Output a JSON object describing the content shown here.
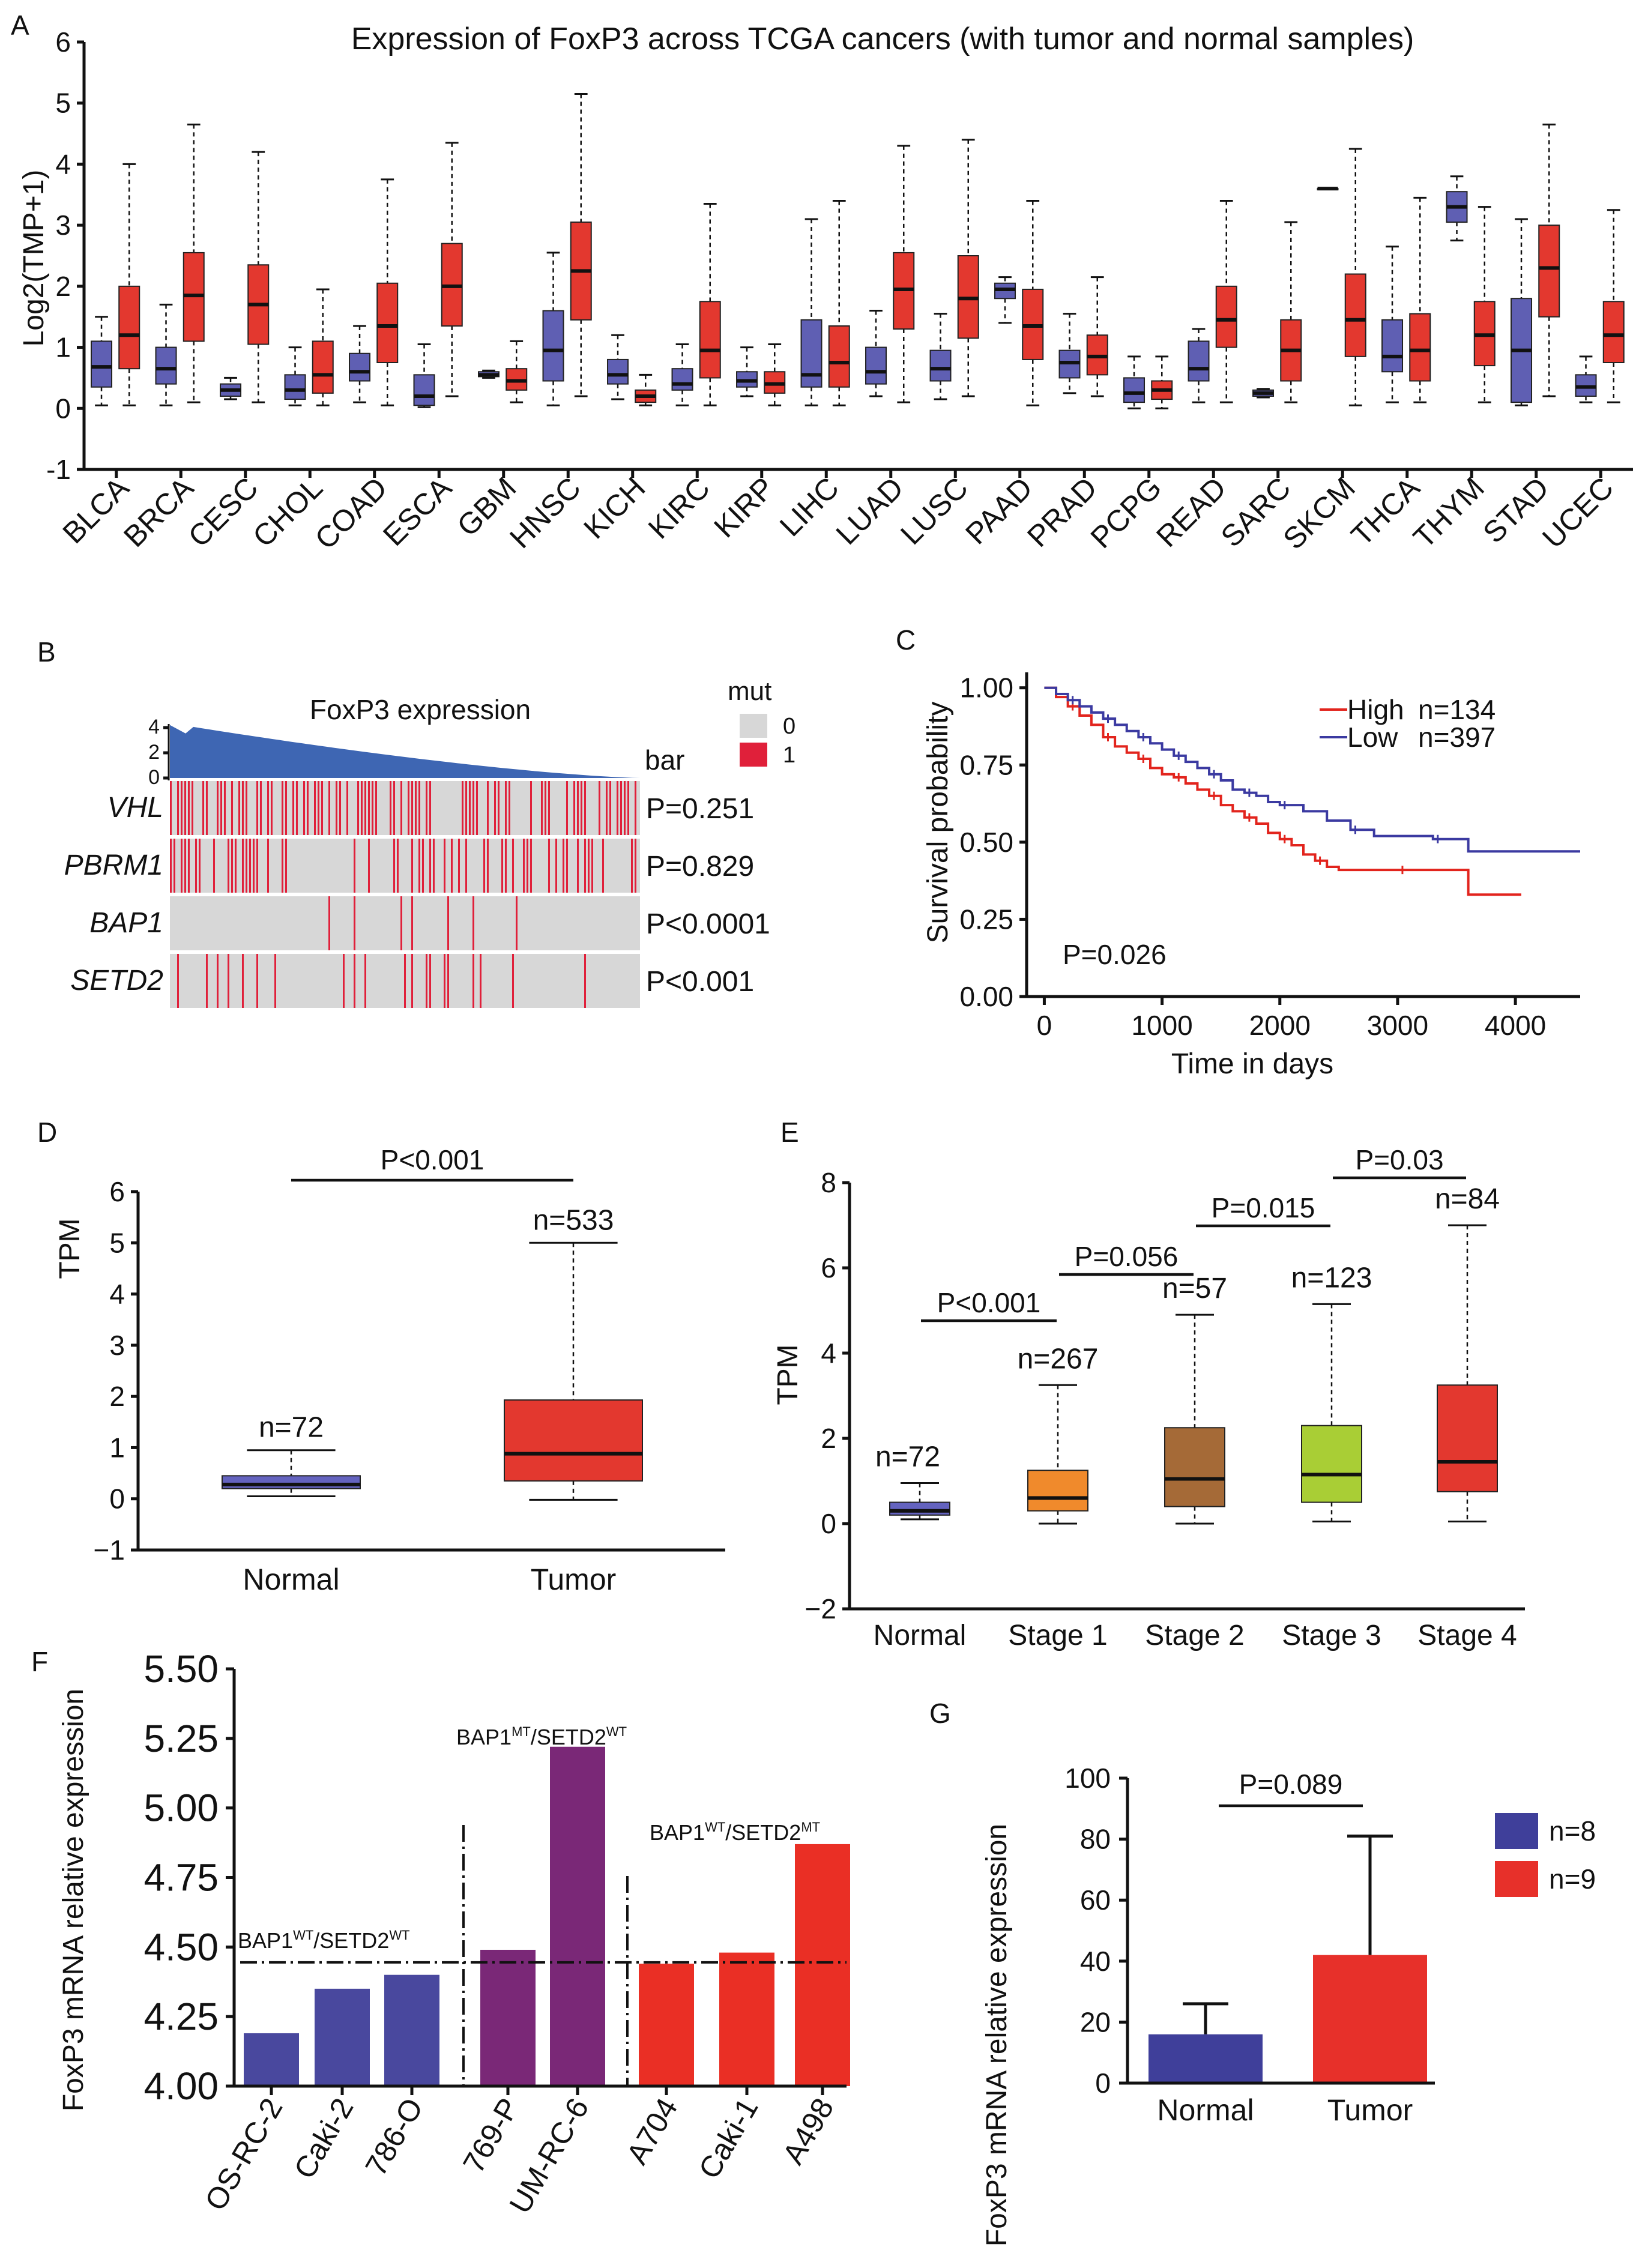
{
  "colors": {
    "blue": "#5f5fb3",
    "red": "#e3382f",
    "normal_box": "#6463bf",
    "stage1": "#f08a2c",
    "stage2": "#a56a37",
    "stage3": "#a9ce35",
    "stage4": "#e3382f",
    "purple": "#7a2877",
    "bar_blue": "#49489e",
    "bar_red": "#ea2f25",
    "g_blue": "#3f3f9a",
    "g_red": "#e7302a",
    "heat_grey": "#d7d7d7",
    "heat_red": "#e0203a",
    "expr_fill": "#3e66b3",
    "km_high": "#e2241d",
    "km_low": "#3b3aa1"
  },
  "chart_data": [
    {
      "panel": "A",
      "type": "box",
      "title": "Expression of FoxP3 across TCGA cancers (with tumor and normal samples)",
      "ylabel": "Log2(TMP+1)",
      "ylim": [
        -1,
        6
      ],
      "yticks": [
        "-1",
        "0",
        "1",
        "2",
        "3",
        "4",
        "5",
        "6"
      ],
      "categories": [
        "BLCA",
        "BRCA",
        "CESC",
        "CHOL",
        "COAD",
        "ESCA",
        "GBM",
        "HNSC",
        "KICH",
        "KIRC",
        "KIRP",
        "LIHC",
        "LUAD",
        "LUSC",
        "PAAD",
        "PRAD",
        "PCPG",
        "READ",
        "SARC",
        "SKCM",
        "THCA",
        "THYM",
        "STAD",
        "UCEC"
      ],
      "boxes": [
        {
          "cat": 0,
          "group": "normal",
          "min": 0.05,
          "q1": 0.35,
          "med": 0.68,
          "q3": 1.1,
          "max": 1.5
        },
        {
          "cat": 0,
          "group": "tumor",
          "min": 0.05,
          "q1": 0.65,
          "med": 1.2,
          "q3": 2.0,
          "max": 4.0
        },
        {
          "cat": 1,
          "group": "normal",
          "min": 0.05,
          "q1": 0.4,
          "med": 0.65,
          "q3": 1.0,
          "max": 1.7
        },
        {
          "cat": 1,
          "group": "tumor",
          "min": 0.1,
          "q1": 1.1,
          "med": 1.85,
          "q3": 2.55,
          "max": 4.65
        },
        {
          "cat": 2,
          "group": "normal",
          "min": 0.15,
          "q1": 0.2,
          "med": 0.3,
          "q3": 0.4,
          "max": 0.5
        },
        {
          "cat": 2,
          "group": "tumor",
          "min": 0.1,
          "q1": 1.05,
          "med": 1.7,
          "q3": 2.35,
          "max": 4.2
        },
        {
          "cat": 3,
          "group": "normal",
          "min": 0.05,
          "q1": 0.15,
          "med": 0.3,
          "q3": 0.55,
          "max": 1.0
        },
        {
          "cat": 3,
          "group": "tumor",
          "min": 0.05,
          "q1": 0.25,
          "med": 0.55,
          "q3": 1.1,
          "max": 1.95
        },
        {
          "cat": 4,
          "group": "normal",
          "min": 0.1,
          "q1": 0.45,
          "med": 0.6,
          "q3": 0.9,
          "max": 1.35
        },
        {
          "cat": 4,
          "group": "tumor",
          "min": 0.05,
          "q1": 0.75,
          "med": 1.35,
          "q3": 2.05,
          "max": 3.75
        },
        {
          "cat": 5,
          "group": "normal",
          "min": 0.02,
          "q1": 0.05,
          "med": 0.2,
          "q3": 0.55,
          "max": 1.05
        },
        {
          "cat": 5,
          "group": "tumor",
          "min": 0.2,
          "q1": 1.35,
          "med": 2.0,
          "q3": 2.7,
          "max": 4.35
        },
        {
          "cat": 6,
          "group": "normal",
          "min": 0.5,
          "q1": 0.52,
          "med": 0.55,
          "q3": 0.6,
          "max": 0.62
        },
        {
          "cat": 6,
          "group": "tumor",
          "min": 0.1,
          "q1": 0.3,
          "med": 0.45,
          "q3": 0.65,
          "max": 1.1
        },
        {
          "cat": 7,
          "group": "normal",
          "min": 0.05,
          "q1": 0.45,
          "med": 0.95,
          "q3": 1.6,
          "max": 2.55
        },
        {
          "cat": 7,
          "group": "tumor",
          "min": 0.2,
          "q1": 1.45,
          "med": 2.25,
          "q3": 3.05,
          "max": 5.15
        },
        {
          "cat": 8,
          "group": "normal",
          "min": 0.15,
          "q1": 0.4,
          "med": 0.55,
          "q3": 0.8,
          "max": 1.2
        },
        {
          "cat": 8,
          "group": "tumor",
          "min": 0.05,
          "q1": 0.1,
          "med": 0.2,
          "q3": 0.3,
          "max": 0.55
        },
        {
          "cat": 9,
          "group": "normal",
          "min": 0.05,
          "q1": 0.3,
          "med": 0.4,
          "q3": 0.65,
          "max": 1.05
        },
        {
          "cat": 9,
          "group": "tumor",
          "min": 0.05,
          "q1": 0.5,
          "med": 0.95,
          "q3": 1.75,
          "max": 3.35
        },
        {
          "cat": 10,
          "group": "normal",
          "min": 0.2,
          "q1": 0.35,
          "med": 0.45,
          "q3": 0.6,
          "max": 1.0
        },
        {
          "cat": 10,
          "group": "tumor",
          "min": 0.05,
          "q1": 0.25,
          "med": 0.4,
          "q3": 0.6,
          "max": 1.05
        },
        {
          "cat": 11,
          "group": "normal",
          "min": 0.05,
          "q1": 0.35,
          "med": 0.55,
          "q3": 1.45,
          "max": 3.1
        },
        {
          "cat": 11,
          "group": "tumor",
          "min": 0.05,
          "q1": 0.35,
          "med": 0.75,
          "q3": 1.35,
          "max": 3.4
        },
        {
          "cat": 12,
          "group": "normal",
          "min": 0.2,
          "q1": 0.4,
          "med": 0.6,
          "q3": 1.0,
          "max": 1.6
        },
        {
          "cat": 12,
          "group": "tumor",
          "min": 0.1,
          "q1": 1.3,
          "med": 1.95,
          "q3": 2.55,
          "max": 4.3
        },
        {
          "cat": 13,
          "group": "normal",
          "min": 0.15,
          "q1": 0.45,
          "med": 0.65,
          "q3": 0.95,
          "max": 1.55
        },
        {
          "cat": 13,
          "group": "tumor",
          "min": 0.2,
          "q1": 1.15,
          "med": 1.8,
          "q3": 2.5,
          "max": 4.4
        },
        {
          "cat": 14,
          "group": "normal",
          "min": 1.4,
          "q1": 1.8,
          "med": 1.95,
          "q3": 2.05,
          "max": 2.15
        },
        {
          "cat": 14,
          "group": "tumor",
          "min": 0.05,
          "q1": 0.8,
          "med": 1.35,
          "q3": 1.95,
          "max": 3.4
        },
        {
          "cat": 15,
          "group": "normal",
          "min": 0.25,
          "q1": 0.5,
          "med": 0.75,
          "q3": 0.95,
          "max": 1.55
        },
        {
          "cat": 15,
          "group": "tumor",
          "min": 0.2,
          "q1": 0.55,
          "med": 0.85,
          "q3": 1.2,
          "max": 2.15
        },
        {
          "cat": 16,
          "group": "normal",
          "min": 0.0,
          "q1": 0.1,
          "med": 0.25,
          "q3": 0.5,
          "max": 0.85
        },
        {
          "cat": 16,
          "group": "tumor",
          "min": 0.0,
          "q1": 0.15,
          "med": 0.3,
          "q3": 0.45,
          "max": 0.85
        },
        {
          "cat": 17,
          "group": "normal",
          "min": 0.1,
          "q1": 0.45,
          "med": 0.65,
          "q3": 1.1,
          "max": 1.3
        },
        {
          "cat": 17,
          "group": "tumor",
          "min": 0.1,
          "q1": 1.0,
          "med": 1.45,
          "q3": 2.0,
          "max": 3.4
        },
        {
          "cat": 18,
          "group": "normal",
          "min": 0.18,
          "q1": 0.2,
          "med": 0.25,
          "q3": 0.3,
          "max": 0.32
        },
        {
          "cat": 18,
          "group": "tumor",
          "min": 0.1,
          "q1": 0.45,
          "med": 0.95,
          "q3": 1.45,
          "max": 3.05
        },
        {
          "cat": 19,
          "group": "normal",
          "min": 3.6,
          "q1": 3.6,
          "med": 3.6,
          "q3": 3.6,
          "max": 3.6
        },
        {
          "cat": 19,
          "group": "tumor",
          "min": 0.05,
          "q1": 0.85,
          "med": 1.45,
          "q3": 2.2,
          "max": 4.25
        },
        {
          "cat": 20,
          "group": "normal",
          "min": 0.1,
          "q1": 0.6,
          "med": 0.85,
          "q3": 1.45,
          "max": 2.65
        },
        {
          "cat": 20,
          "group": "tumor",
          "min": 0.1,
          "q1": 0.45,
          "med": 0.95,
          "q3": 1.55,
          "max": 3.45
        },
        {
          "cat": 21,
          "group": "normal",
          "min": 2.75,
          "q1": 3.05,
          "med": 3.3,
          "q3": 3.55,
          "max": 3.8
        },
        {
          "cat": 21,
          "group": "tumor",
          "min": 0.1,
          "q1": 0.7,
          "med": 1.2,
          "q3": 1.75,
          "max": 3.3
        },
        {
          "cat": 22,
          "group": "normal",
          "min": 0.05,
          "q1": 0.1,
          "med": 0.95,
          "q3": 1.8,
          "max": 3.1
        },
        {
          "cat": 22,
          "group": "tumor",
          "min": 0.2,
          "q1": 1.5,
          "med": 2.3,
          "q3": 3.0,
          "max": 4.65
        },
        {
          "cat": 23,
          "group": "normal",
          "min": 0.1,
          "q1": 0.2,
          "med": 0.35,
          "q3": 0.55,
          "max": 0.85
        },
        {
          "cat": 23,
          "group": "tumor",
          "min": 0.1,
          "q1": 0.75,
          "med": 1.2,
          "q3": 1.75,
          "max": 3.25
        }
      ]
    },
    {
      "panel": "B",
      "type": "heatmap",
      "title": "FoxP3 expression",
      "expr_ticks": [
        "4",
        "2",
        "0"
      ],
      "bar_label": "bar",
      "legend": {
        "title": "mut",
        "labels": [
          "0",
          "1"
        ]
      },
      "rows": [
        {
          "gene": "VHL",
          "p": "P=0.251",
          "density": 0.55
        },
        {
          "gene": "PBRM1",
          "p": "P=0.829",
          "density": 0.45
        },
        {
          "gene": "BAP1",
          "p": "P<0.0001",
          "density": 0.06
        },
        {
          "gene": "SETD2",
          "p": "P<0.001",
          "density": 0.12
        }
      ]
    },
    {
      "panel": "C",
      "type": "line",
      "xlabel": "Time in days",
      "ylabel": "Survival probability",
      "xlim": [
        -150,
        4550
      ],
      "ylim": [
        0,
        1.05
      ],
      "xticks": [
        0,
        1000,
        2000,
        3000,
        4000
      ],
      "yticks": [
        "0.00",
        "0.25",
        "0.50",
        "0.75",
        "1.00"
      ],
      "p_value": "P=0.026",
      "series": [
        {
          "name": "High",
          "n_label": "n=134",
          "key": "km_high",
          "x": [
            0,
            100,
            200,
            300,
            400,
            500,
            600,
            700,
            800,
            900,
            1000,
            1100,
            1200,
            1300,
            1400,
            1500,
            1600,
            1700,
            1800,
            1900,
            2000,
            2100,
            2200,
            2300,
            2400,
            2500,
            3000,
            3500,
            3600,
            4050
          ],
          "y": [
            1.0,
            0.97,
            0.94,
            0.91,
            0.88,
            0.84,
            0.81,
            0.79,
            0.77,
            0.74,
            0.72,
            0.71,
            0.69,
            0.67,
            0.65,
            0.62,
            0.6,
            0.58,
            0.56,
            0.53,
            0.51,
            0.49,
            0.46,
            0.44,
            0.42,
            0.41,
            0.41,
            0.41,
            0.33,
            0.33
          ]
        },
        {
          "name": "Low",
          "n_label": "n=397",
          "key": "km_low",
          "x": [
            0,
            100,
            200,
            300,
            400,
            500,
            600,
            700,
            800,
            900,
            1000,
            1100,
            1200,
            1300,
            1400,
            1500,
            1600,
            1700,
            1800,
            1900,
            2000,
            2200,
            2400,
            2600,
            2800,
            3000,
            3300,
            3600,
            4000,
            4550
          ],
          "y": [
            1.0,
            0.98,
            0.96,
            0.94,
            0.92,
            0.9,
            0.88,
            0.86,
            0.84,
            0.82,
            0.8,
            0.78,
            0.76,
            0.74,
            0.72,
            0.7,
            0.67,
            0.66,
            0.65,
            0.63,
            0.62,
            0.6,
            0.57,
            0.54,
            0.52,
            0.52,
            0.51,
            0.47,
            0.47,
            0.47
          ]
        }
      ]
    },
    {
      "panel": "D",
      "type": "box",
      "ylabel": "TPM",
      "ylim": [
        -1,
        6
      ],
      "yticks": [
        "−1",
        "0",
        "1",
        "2",
        "3",
        "4",
        "5",
        "6"
      ],
      "categories": [
        "Normal",
        "Tumor"
      ],
      "n_labels": [
        "n=72",
        "n=533"
      ],
      "significance": "P<0.001",
      "boxes": [
        {
          "cat": 0,
          "color": "normal_box",
          "min": 0.05,
          "q1": 0.2,
          "med": 0.28,
          "q3": 0.45,
          "max": 0.95
        },
        {
          "cat": 1,
          "color": "red",
          "min": -0.02,
          "q1": 0.35,
          "med": 0.88,
          "q3": 1.93,
          "max": 5.0
        }
      ]
    },
    {
      "panel": "E",
      "type": "box",
      "ylabel": "TPM",
      "ylim": [
        -2,
        8
      ],
      "yticks": [
        "−2",
        "0",
        "2",
        "4",
        "6",
        "8"
      ],
      "categories": [
        "Normal",
        "Stage 1",
        "Stage 2",
        "Stage 3",
        "Stage 4"
      ],
      "n_labels": [
        "n=72",
        "n=267",
        "n=57",
        "n=123",
        "n=84"
      ],
      "comparisons": [
        "P<0.001",
        "P=0.056",
        "P=0.015",
        "P=0.03"
      ],
      "boxes": [
        {
          "cat": 0,
          "color": "normal_box",
          "min": 0.1,
          "q1": 0.2,
          "med": 0.3,
          "q3": 0.5,
          "max": 0.95
        },
        {
          "cat": 1,
          "color": "stage1",
          "min": 0.0,
          "q1": 0.3,
          "med": 0.6,
          "q3": 1.25,
          "max": 3.25
        },
        {
          "cat": 2,
          "color": "stage2",
          "min": 0.0,
          "q1": 0.4,
          "med": 1.05,
          "q3": 2.25,
          "max": 4.9
        },
        {
          "cat": 3,
          "color": "stage3",
          "min": 0.05,
          "q1": 0.5,
          "med": 1.15,
          "q3": 2.3,
          "max": 5.15
        },
        {
          "cat": 4,
          "color": "stage4",
          "min": 0.05,
          "q1": 0.75,
          "med": 1.45,
          "q3": 3.25,
          "max": 7.0
        }
      ]
    },
    {
      "panel": "F",
      "type": "bar",
      "ylabel": "FoxP3 mRNA relative expression",
      "ylim": [
        4.0,
        5.5
      ],
      "yticks": [
        "4.00",
        "4.25",
        "4.50",
        "4.75",
        "5.00",
        "5.25",
        "5.50"
      ],
      "categories": [
        "OS-RC-2",
        "Caki-2",
        "786-O",
        "769-P",
        "UM-RC-6",
        "A704",
        "Caki-1",
        "A498"
      ],
      "values": [
        4.19,
        4.35,
        4.4,
        4.49,
        5.22,
        4.44,
        4.48,
        4.87
      ],
      "bar_colors": [
        "bar_blue",
        "bar_blue",
        "bar_blue",
        "purple",
        "purple",
        "bar_red",
        "bar_red",
        "bar_red"
      ],
      "reference_line": 4.445,
      "group_labels": [
        {
          "gene1": "BAP1",
          "sup1": "WT",
          "gene2": "SETD2",
          "sup2": "WT"
        },
        {
          "gene1": "BAP1",
          "sup1": "MT",
          "gene2": "SETD2",
          "sup2": "WT"
        },
        {
          "gene1": "BAP1",
          "sup1": "WT",
          "gene2": "SETD2",
          "sup2": "MT"
        }
      ]
    },
    {
      "panel": "G",
      "type": "bar",
      "ylabel": "FoxP3 mRNA relative expression",
      "ylim": [
        0,
        100
      ],
      "yticks": [
        "0",
        "20",
        "40",
        "60",
        "80",
        "100"
      ],
      "categories": [
        "Normal",
        "Tumor"
      ],
      "values": [
        16,
        42
      ],
      "errors": [
        26,
        81
      ],
      "significance": "P=0.089",
      "legend": [
        "n=8",
        "n=9"
      ]
    }
  ],
  "panel_letters": [
    "A",
    "B",
    "C",
    "D",
    "E",
    "F",
    "G"
  ]
}
